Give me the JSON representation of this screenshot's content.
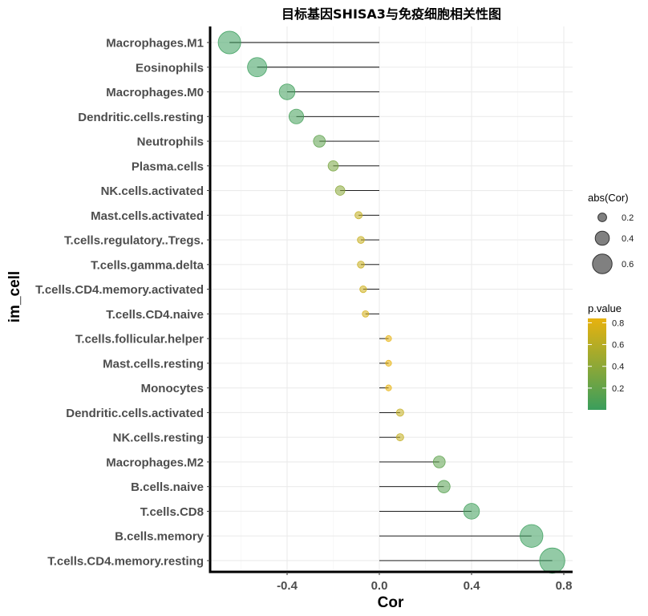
{
  "chart_data": {
    "type": "scatter",
    "title": "目标基因SHISA3与免疫细胞相关性图",
    "xlabel": "Cor",
    "ylabel": "im_cell",
    "xlim": [
      -0.72,
      0.82
    ],
    "x_ticks": [
      -0.4,
      0.0,
      0.4,
      0.8
    ],
    "x_tick_labels": [
      "-0.4",
      "0.0",
      "0.4",
      "0.8"
    ],
    "grid": true,
    "points": [
      {
        "cell": "Macrophages.M1",
        "cor": -0.65,
        "p": 0.0
      },
      {
        "cell": "Eosinophils",
        "cor": -0.53,
        "p": 0.0
      },
      {
        "cell": "Macrophages.M0",
        "cor": -0.4,
        "p": 0.02
      },
      {
        "cell": "Dendritic.cells.resting",
        "cor": -0.36,
        "p": 0.04
      },
      {
        "cell": "Neutrophils",
        "cor": -0.26,
        "p": 0.17
      },
      {
        "cell": "Plasma.cells",
        "cor": -0.2,
        "p": 0.3
      },
      {
        "cell": "NK.cells.activated",
        "cor": -0.17,
        "p": 0.38
      },
      {
        "cell": "Mast.cells.activated",
        "cor": -0.09,
        "p": 0.66
      },
      {
        "cell": "T.cells.regulatory..Tregs.",
        "cor": -0.08,
        "p": 0.68
      },
      {
        "cell": "T.cells.gamma.delta",
        "cor": -0.08,
        "p": 0.69
      },
      {
        "cell": "T.cells.CD4.memory.activated",
        "cor": -0.07,
        "p": 0.71
      },
      {
        "cell": "T.cells.CD4.naive",
        "cor": -0.06,
        "p": 0.76
      },
      {
        "cell": "T.cells.follicular.helper",
        "cor": 0.04,
        "p": 0.84
      },
      {
        "cell": "Mast.cells.resting",
        "cor": 0.04,
        "p": 0.84
      },
      {
        "cell": "Monocytes",
        "cor": 0.04,
        "p": 0.84
      },
      {
        "cell": "Dendritic.cells.activated",
        "cor": 0.09,
        "p": 0.66
      },
      {
        "cell": "NK.cells.resting",
        "cor": 0.09,
        "p": 0.66
      },
      {
        "cell": "Macrophages.M2",
        "cor": 0.26,
        "p": 0.17
      },
      {
        "cell": "B.cells.naive",
        "cor": 0.28,
        "p": 0.13
      },
      {
        "cell": "T.cells.CD8",
        "cor": 0.4,
        "p": 0.02
      },
      {
        "cell": "B.cells.memory",
        "cor": 0.66,
        "p": 0.0
      },
      {
        "cell": "T.cells.CD4.memory.resting",
        "cor": 0.75,
        "p": 0.0
      }
    ],
    "size_legend": {
      "title": "abs(Cor)",
      "values": [
        0.2,
        0.4,
        0.6
      ],
      "labels": [
        "0.2",
        "0.4",
        "0.6"
      ]
    },
    "color_legend": {
      "title": "p.value",
      "range": [
        0.0,
        0.84
      ],
      "ticks": [
        0.2,
        0.4,
        0.6,
        0.8
      ],
      "labels": [
        "0.2",
        "0.4",
        "0.6",
        "0.8"
      ],
      "low_color": "#3a9e5c",
      "high_color": "#e8b20e"
    }
  }
}
